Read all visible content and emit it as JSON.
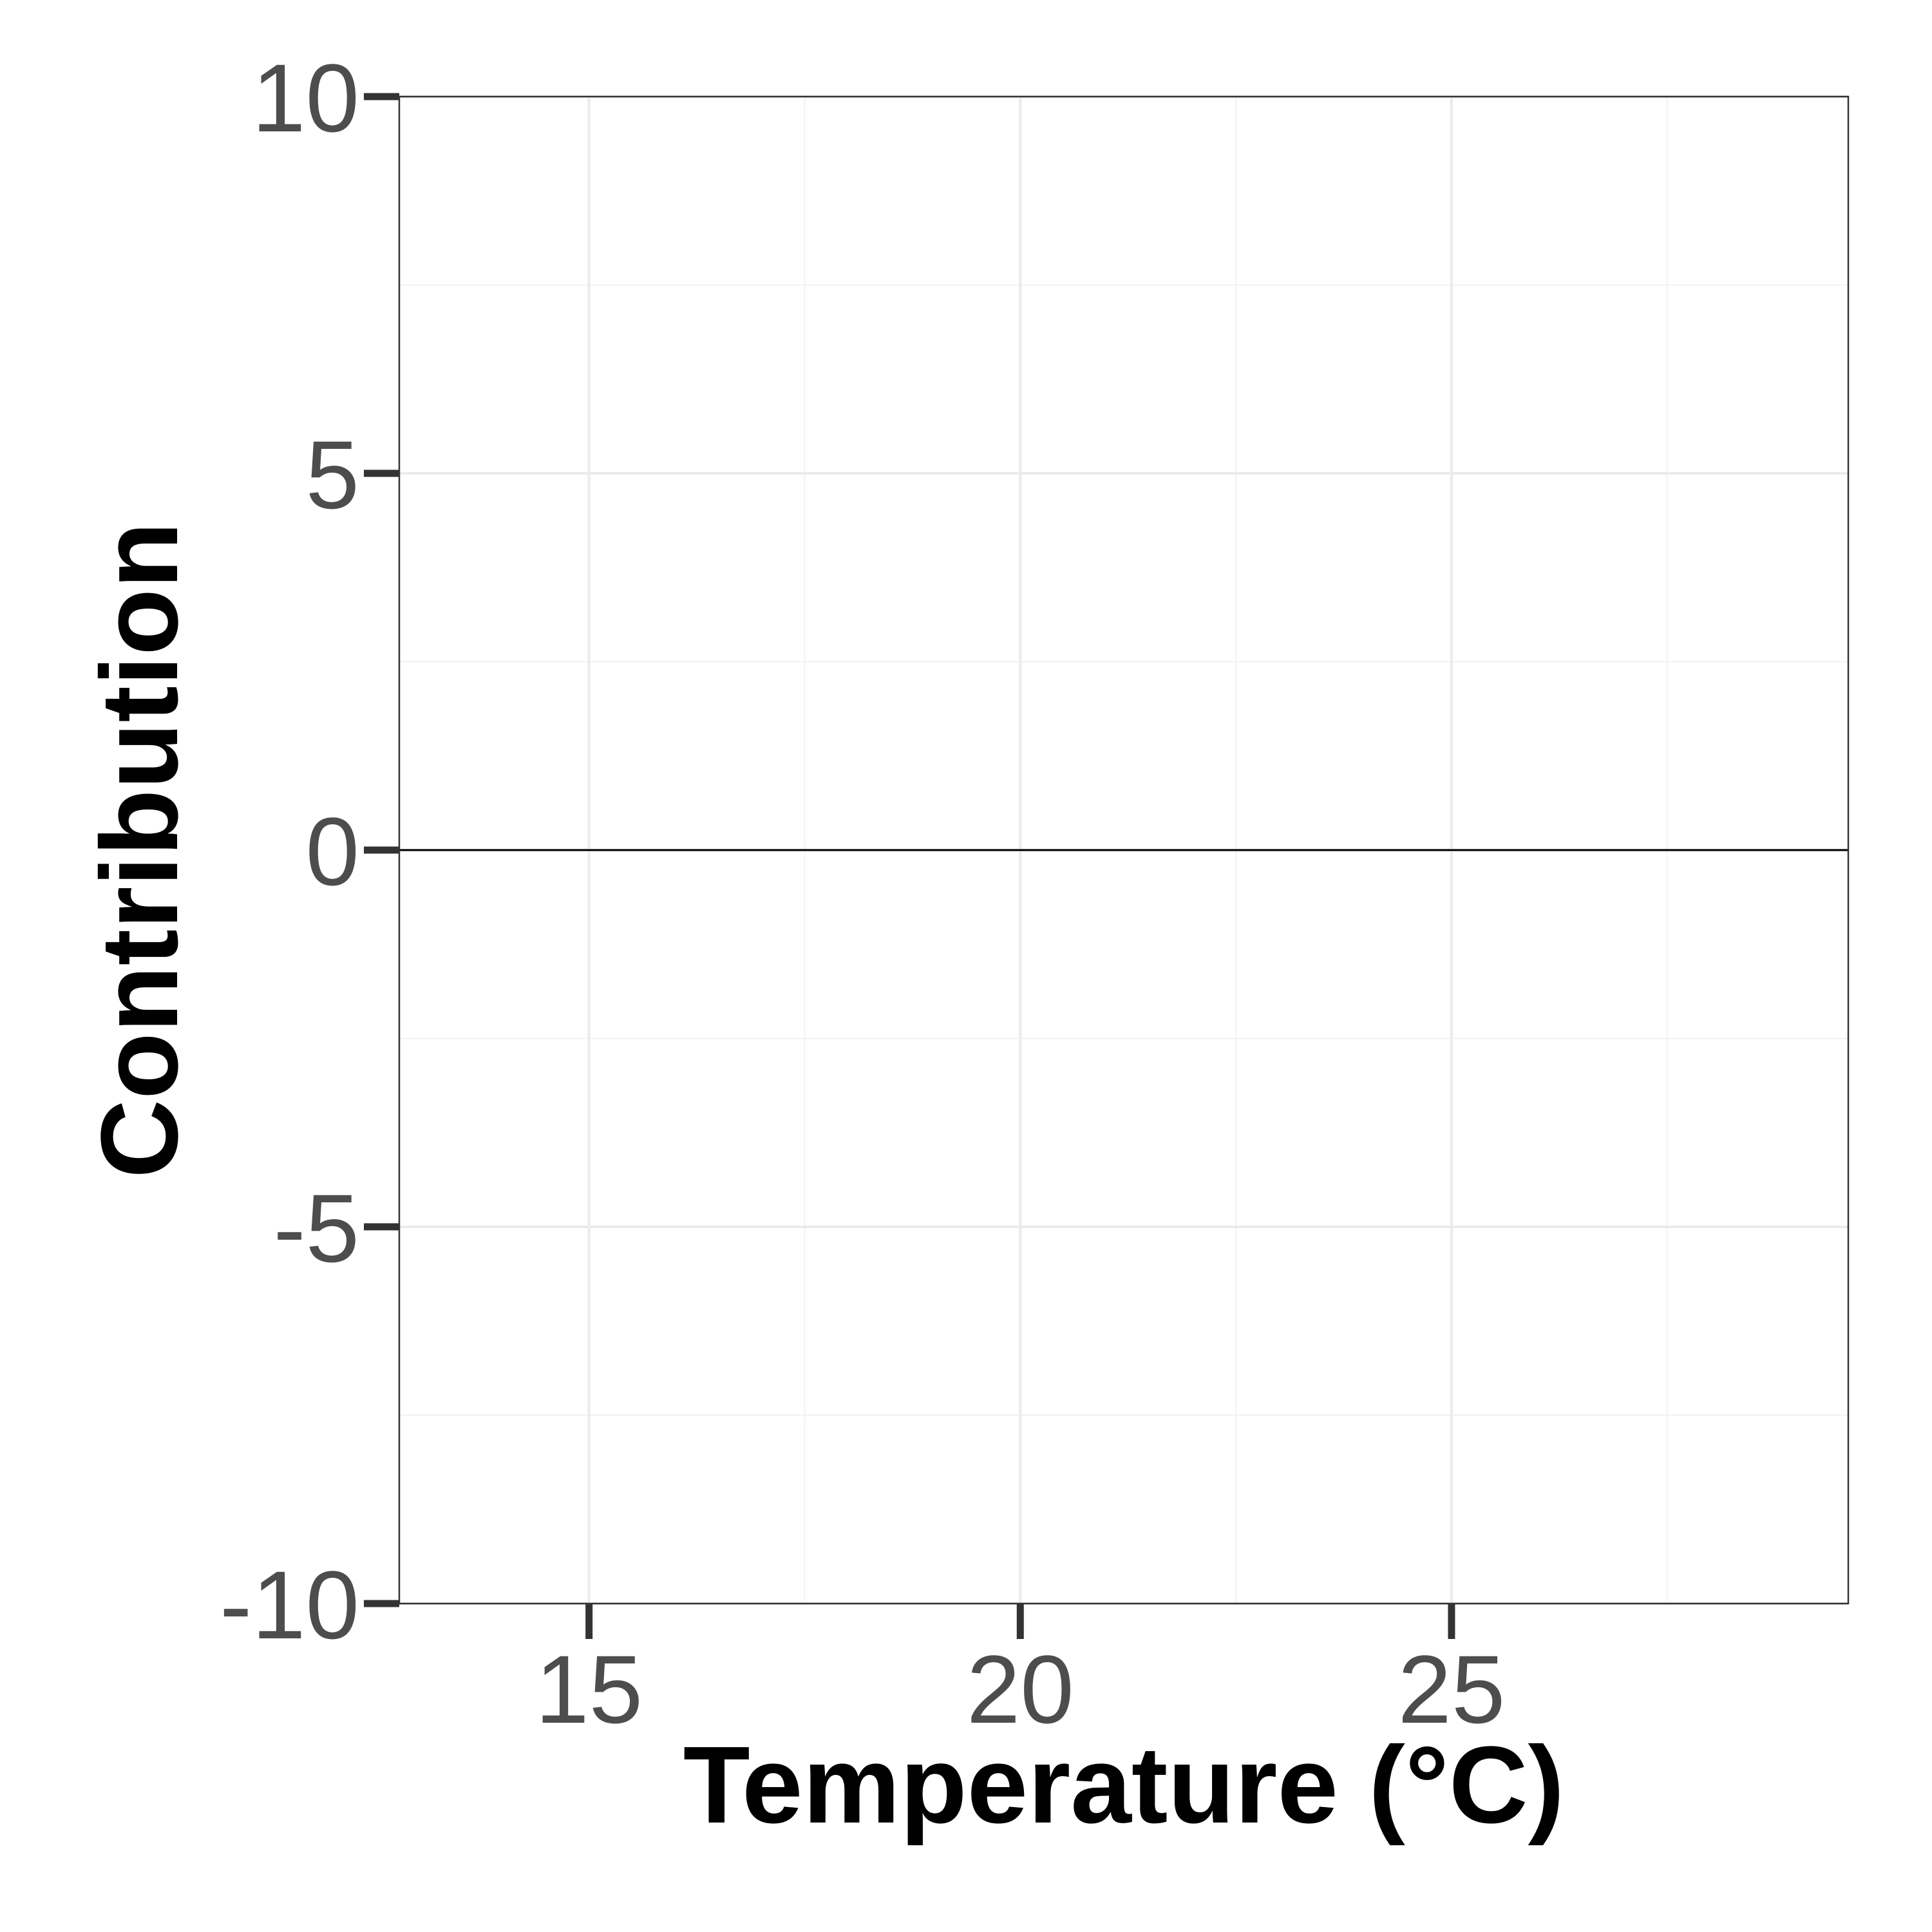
{
  "chart_data": {
    "type": "line",
    "title": "",
    "xlabel": "Temperature (°C)",
    "ylabel": "Contribution",
    "xlim": [
      12.8,
      29.6
    ],
    "ylim": [
      -10,
      10
    ],
    "x_ticks": [
      15,
      20,
      25
    ],
    "x_tick_labels": [
      "15",
      "20",
      "25"
    ],
    "y_ticks": [
      -10,
      -5,
      0,
      5,
      10
    ],
    "y_tick_labels": [
      "-10",
      "-5",
      "0",
      "5",
      "10"
    ],
    "x_minor_ticks": [
      17.5,
      22.5,
      27.5
    ],
    "y_minor_ticks": [
      -7.5,
      -2.5,
      2.5,
      7.5
    ],
    "grid": true,
    "reference_line": {
      "y": 0,
      "color": "#000000"
    },
    "series": []
  }
}
